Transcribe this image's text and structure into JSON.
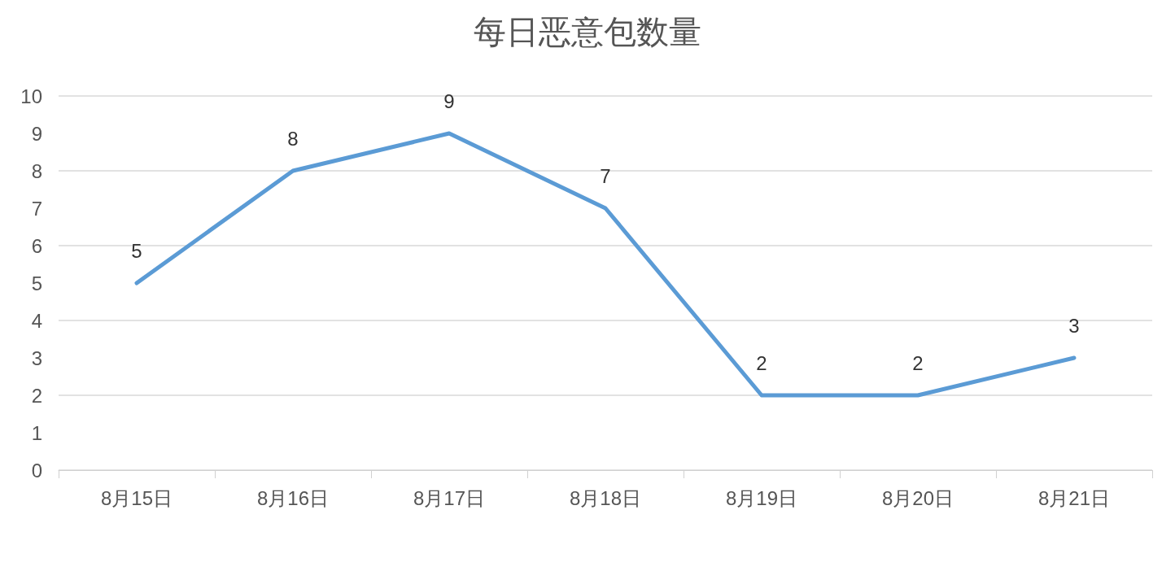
{
  "chart_data": {
    "type": "line",
    "title": "每日恶意包数量",
    "categories": [
      "8月15日",
      "8月16日",
      "8月17日",
      "8月18日",
      "8月19日",
      "8月20日",
      "8月21日"
    ],
    "series": [
      {
        "color": "#5b9bd5",
        "values": [
          5,
          8,
          9,
          7,
          2,
          2,
          3
        ]
      }
    ],
    "ylim": [
      0,
      10
    ],
    "yticks": [
      0,
      1,
      2,
      3,
      4,
      5,
      6,
      7,
      8,
      9,
      10
    ],
    "grid": "y",
    "data_labels": true,
    "marker": "none",
    "line_style": "solid"
  }
}
